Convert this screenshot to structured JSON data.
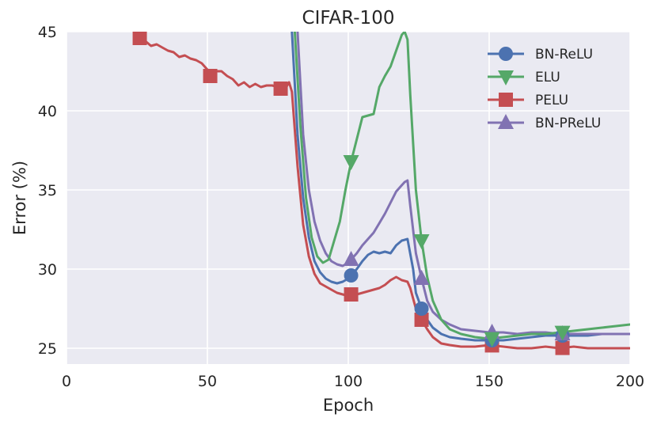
{
  "chart_data": {
    "type": "line",
    "title": "CIFAR-100",
    "xlabel": "Epoch",
    "ylabel": "Error (%)",
    "xlim": [
      0,
      200
    ],
    "ylim": [
      24,
      45
    ],
    "xticks": [
      0,
      50,
      100,
      150,
      200
    ],
    "yticks": [
      25,
      30,
      35,
      40,
      45
    ],
    "grid": true,
    "legend_position": "top-right",
    "series": [
      {
        "name": "BN-ReLU",
        "color": "#4c72b0",
        "marker": "circle",
        "marker_x": [
          101,
          126,
          151,
          176
        ],
        "x": [
          80,
          82,
          84,
          86,
          88,
          90,
          92,
          94,
          96,
          98,
          100,
          101,
          103,
          105,
          107,
          109,
          111,
          113,
          115,
          117,
          119,
          121,
          123,
          124,
          126,
          128,
          130,
          133,
          136,
          140,
          145,
          150,
          155,
          160,
          165,
          170,
          175,
          180,
          185,
          190,
          195,
          200
        ],
        "values": [
          45,
          38.5,
          34.5,
          32,
          30.5,
          29.8,
          29.4,
          29.2,
          29.1,
          29.2,
          29.4,
          29.6,
          30.0,
          30.5,
          30.9,
          31.1,
          31.0,
          31.1,
          31.0,
          31.5,
          31.8,
          31.9,
          30.0,
          28.5,
          27.5,
          26.8,
          26.3,
          25.9,
          25.7,
          25.6,
          25.5,
          25.5,
          25.5,
          25.6,
          25.7,
          25.8,
          25.8,
          25.8,
          25.8,
          25.9,
          25.9,
          25.9
        ]
      },
      {
        "name": "ELU",
        "color": "#55a868",
        "marker": "triangle-down",
        "marker_x": [
          101,
          126,
          151,
          176
        ],
        "x": [
          81,
          83,
          85,
          87,
          89,
          91,
          93,
          95,
          97,
          99,
          101,
          103,
          105,
          107,
          109,
          111,
          113,
          115,
          117,
          119,
          120,
          121,
          122,
          124,
          126,
          128,
          130,
          133,
          136,
          140,
          145,
          150,
          155,
          160,
          165,
          170,
          175,
          180,
          185,
          190,
          195,
          200
        ],
        "values": [
          45,
          39,
          34.5,
          32,
          30.8,
          30.4,
          30.6,
          31.8,
          33,
          35,
          36.8,
          38.2,
          39.6,
          39.7,
          39.8,
          41.5,
          42.2,
          42.8,
          43.8,
          44.8,
          45,
          44.5,
          41,
          35,
          31.8,
          29.5,
          28.0,
          26.8,
          26.2,
          25.9,
          25.7,
          25.6,
          25.7,
          25.8,
          25.9,
          25.9,
          26.0,
          26.1,
          26.2,
          26.3,
          26.4,
          26.5
        ]
      },
      {
        "name": "PELU",
        "color": "#c44e52",
        "marker": "square",
        "marker_x": [
          26,
          51,
          76,
          101,
          126,
          151,
          176
        ],
        "x": [
          26,
          28,
          30,
          32,
          34,
          36,
          38,
          40,
          42,
          44,
          46,
          48,
          50,
          51,
          53,
          55,
          57,
          59,
          61,
          63,
          65,
          67,
          69,
          71,
          73,
          75,
          76,
          78,
          79,
          80,
          82,
          84,
          86,
          88,
          90,
          92,
          94,
          96,
          98,
          100,
          101,
          103,
          105,
          107,
          109,
          111,
          113,
          115,
          117,
          119,
          121,
          122,
          124,
          126,
          128,
          130,
          133,
          136,
          140,
          145,
          150,
          155,
          160,
          165,
          170,
          175,
          180,
          185,
          190,
          195,
          200
        ],
        "values": [
          44.6,
          44.4,
          44.1,
          44.2,
          44.0,
          43.8,
          43.7,
          43.4,
          43.5,
          43.3,
          43.2,
          43.0,
          42.6,
          42.2,
          42.5,
          42.5,
          42.2,
          42.0,
          41.6,
          41.8,
          41.5,
          41.7,
          41.5,
          41.6,
          41.6,
          41.5,
          41.4,
          41.5,
          41.8,
          41.2,
          36.5,
          32.8,
          30.8,
          29.7,
          29.1,
          28.9,
          28.7,
          28.5,
          28.4,
          28.3,
          28.4,
          28.4,
          28.5,
          28.6,
          28.7,
          28.8,
          29.0,
          29.3,
          29.5,
          29.3,
          29.2,
          28.8,
          27.5,
          26.8,
          26.2,
          25.7,
          25.3,
          25.2,
          25.1,
          25.1,
          25.2,
          25.1,
          25.0,
          25.0,
          25.1,
          25.0,
          25.1,
          25.0,
          25.0,
          25.0,
          25.0
        ]
      },
      {
        "name": "BN-PReLU",
        "color": "#8172b2",
        "marker": "triangle-up",
        "marker_x": [
          101,
          126,
          151,
          176
        ],
        "x": [
          82,
          84,
          86,
          88,
          90,
          92,
          94,
          96,
          98,
          100,
          101,
          103,
          105,
          107,
          109,
          111,
          113,
          115,
          117,
          119,
          120,
          121,
          122,
          124,
          126,
          128,
          130,
          133,
          136,
          140,
          145,
          150,
          155,
          160,
          165,
          170,
          175,
          180,
          185,
          190,
          195,
          200
        ],
        "values": [
          45,
          38.5,
          35,
          33,
          31.8,
          31.0,
          30.5,
          30.3,
          30.2,
          30.4,
          30.6,
          31.0,
          31.5,
          31.9,
          32.3,
          32.9,
          33.5,
          34.2,
          34.9,
          35.3,
          35.5,
          35.6,
          34.0,
          31.0,
          29.4,
          28.0,
          27.3,
          26.8,
          26.5,
          26.2,
          26.1,
          26.0,
          26.0,
          25.9,
          26.0,
          26.0,
          25.9,
          25.9,
          25.9,
          25.9,
          25.9,
          25.9
        ]
      }
    ]
  }
}
